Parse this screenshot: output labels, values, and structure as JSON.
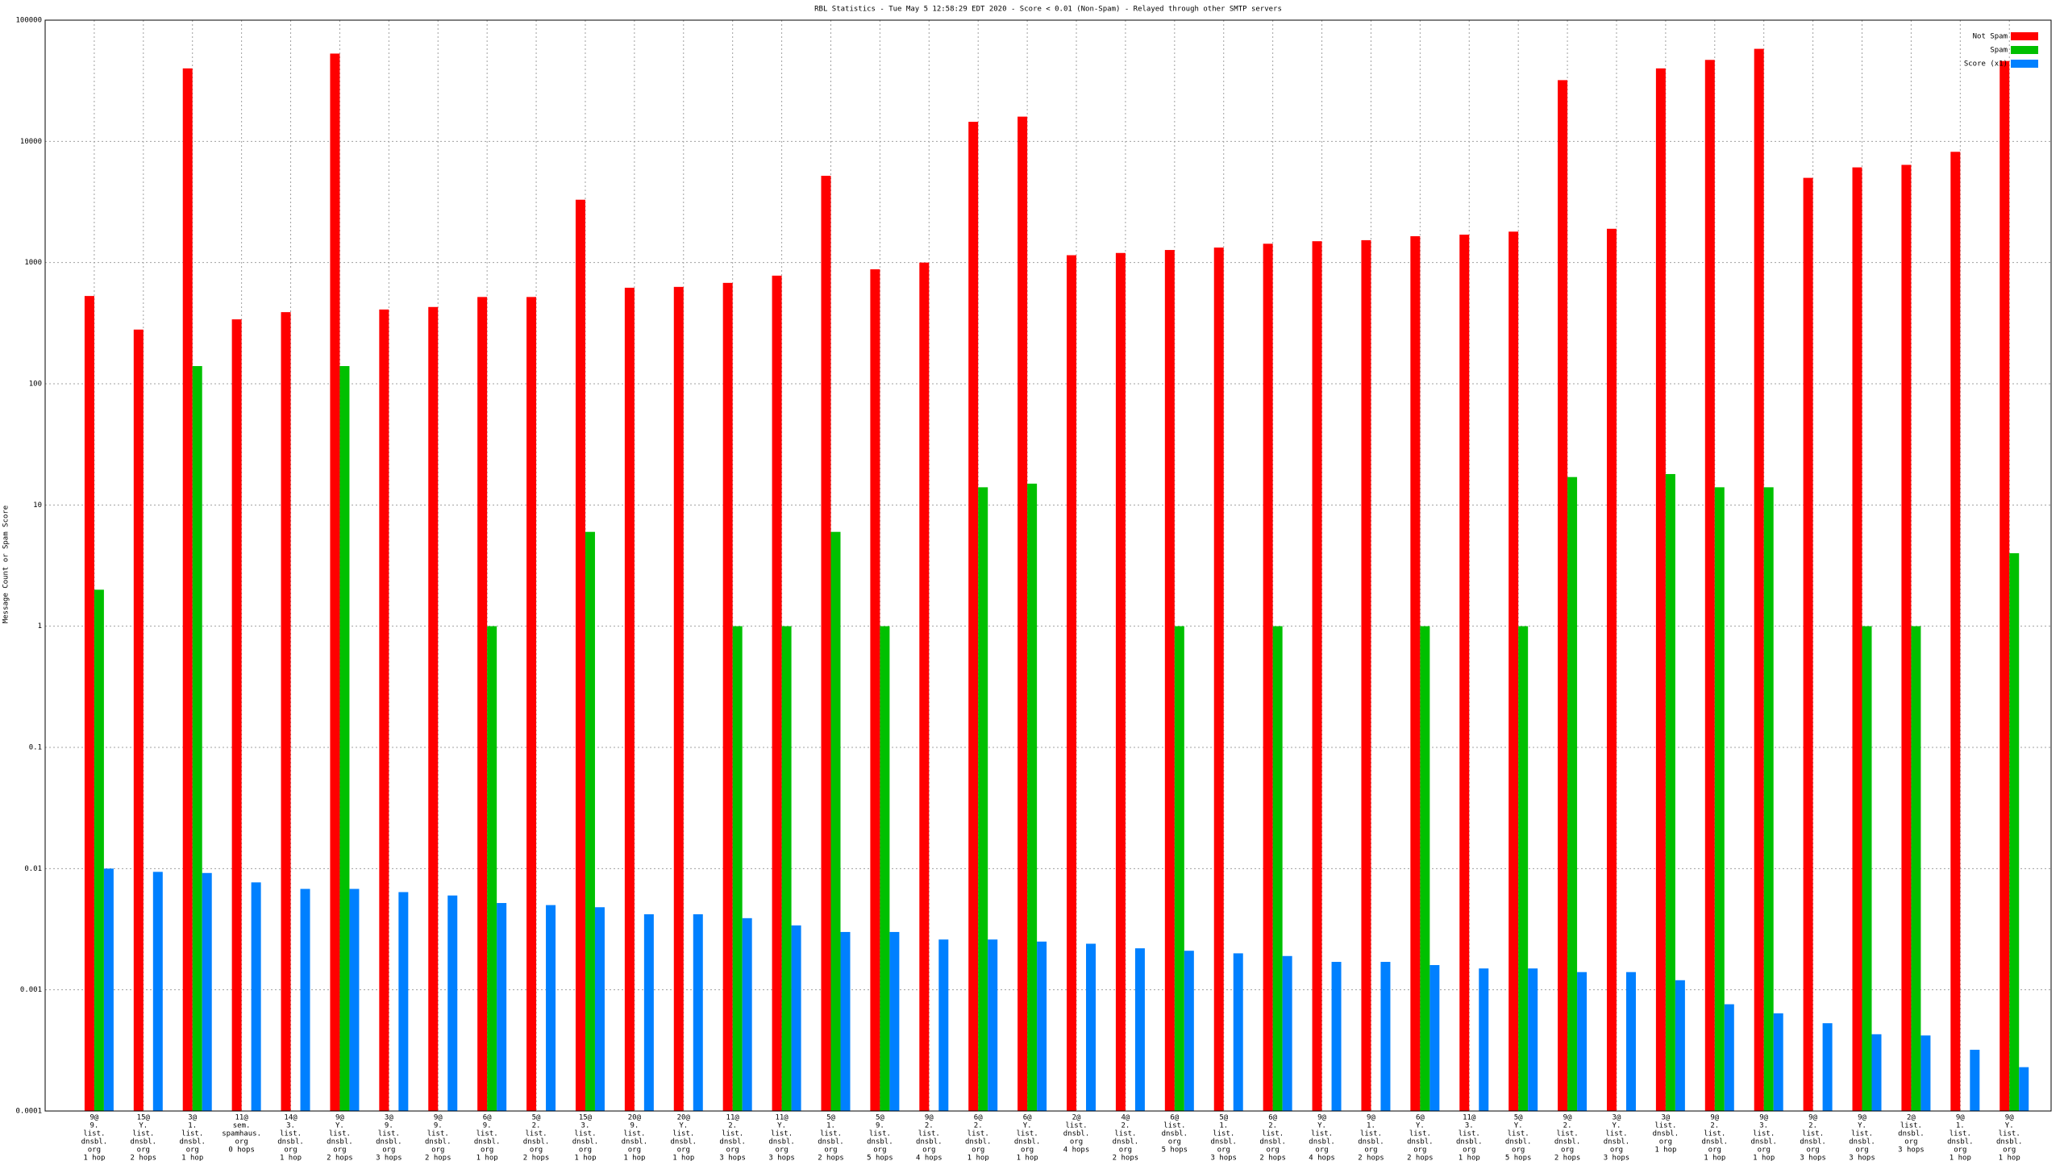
{
  "chart_data": {
    "type": "bar",
    "title": "RBL Statistics - Tue May  5 12:58:29 EDT 2020 - Score < 0.01 (Non-Spam) - Relayed through other SMTP servers",
    "y_label": "Message Count or Spam Score",
    "log_scale": true,
    "grid": true,
    "legend": "top-right",
    "ylim": [
      0.0001,
      100000
    ],
    "yticks": [
      0.0001,
      0.001,
      0.01,
      0.1,
      1,
      10,
      100,
      1000,
      10000,
      100000
    ],
    "categories": [
      [
        "9@",
        "9.",
        "list.",
        "dnsbl.",
        "org",
        "1 hop"
      ],
      [
        "15@",
        "Y.",
        "list.",
        "dnsbl.",
        "org",
        "2 hops"
      ],
      [
        "3@",
        "1.",
        "list.",
        "dnsbl.",
        "org",
        "1 hop"
      ],
      [
        "11@",
        "sem.",
        "spamhaus.",
        "org",
        "0 hops"
      ],
      [
        "14@",
        "3.",
        "list.",
        "dnsbl.",
        "org",
        "1 hop"
      ],
      [
        "9@",
        "Y.",
        "list.",
        "dnsbl.",
        "org",
        "2 hops"
      ],
      [
        "3@",
        "9.",
        "list.",
        "dnsbl.",
        "org",
        "3 hops"
      ],
      [
        "9@",
        "9.",
        "list.",
        "dnsbl.",
        "org",
        "2 hops"
      ],
      [
        "6@",
        "9.",
        "list.",
        "dnsbl.",
        "org",
        "1 hop"
      ],
      [
        "5@",
        "2.",
        "list.",
        "dnsbl.",
        "org",
        "2 hops"
      ],
      [
        "15@",
        "3.",
        "list.",
        "dnsbl.",
        "org",
        "1 hop"
      ],
      [
        "20@",
        "9.",
        "list.",
        "dnsbl.",
        "org",
        "1 hop"
      ],
      [
        "20@",
        "Y.",
        "list.",
        "dnsbl.",
        "org",
        "1 hop"
      ],
      [
        "11@",
        "2.",
        "list.",
        "dnsbl.",
        "org",
        "3 hops"
      ],
      [
        "11@",
        "Y.",
        "list.",
        "dnsbl.",
        "org",
        "3 hops"
      ],
      [
        "5@",
        "1.",
        "list.",
        "dnsbl.",
        "org",
        "2 hops"
      ],
      [
        "5@",
        "9.",
        "list.",
        "dnsbl.",
        "org",
        "5 hops"
      ],
      [
        "9@",
        "2.",
        "list.",
        "dnsbl.",
        "org",
        "4 hops"
      ],
      [
        "6@",
        "2.",
        "list.",
        "dnsbl.",
        "org",
        "1 hop"
      ],
      [
        "6@",
        "Y.",
        "list.",
        "dnsbl.",
        "org",
        "1 hop"
      ],
      [
        "2@",
        "list.",
        "dnsbl.",
        "org",
        "4 hops"
      ],
      [
        "4@",
        "2.",
        "list.",
        "dnsbl.",
        "org",
        "2 hops"
      ],
      [
        "6@",
        "list.",
        "dnsbl.",
        "org",
        "5 hops"
      ],
      [
        "5@",
        "1.",
        "list.",
        "dnsbl.",
        "org",
        "3 hops"
      ],
      [
        "6@",
        "2.",
        "list.",
        "dnsbl.",
        "org",
        "2 hops"
      ],
      [
        "9@",
        "Y.",
        "list.",
        "dnsbl.",
        "org",
        "4 hops"
      ],
      [
        "9@",
        "1.",
        "list.",
        "dnsbl.",
        "org",
        "2 hops"
      ],
      [
        "6@",
        "Y.",
        "list.",
        "dnsbl.",
        "org",
        "2 hops"
      ],
      [
        "11@",
        "3.",
        "list.",
        "dnsbl.",
        "org",
        "1 hop"
      ],
      [
        "5@",
        "Y.",
        "list.",
        "dnsbl.",
        "org",
        "5 hops"
      ],
      [
        "9@",
        "2.",
        "list.",
        "dnsbl.",
        "org",
        "2 hops"
      ],
      [
        "3@",
        "Y.",
        "list.",
        "dnsbl.",
        "org",
        "3 hops"
      ],
      [
        "3@",
        "list.",
        "dnsbl.",
        "org",
        "1 hop"
      ],
      [
        "9@",
        "2.",
        "list.",
        "dnsbl.",
        "org",
        "1 hop"
      ],
      [
        "9@",
        "3.",
        "list.",
        "dnsbl.",
        "org",
        "1 hop"
      ],
      [
        "9@",
        "2.",
        "list.",
        "dnsbl.",
        "org",
        "3 hops"
      ],
      [
        "9@",
        "Y.",
        "list.",
        "dnsbl.",
        "org",
        "3 hops"
      ],
      [
        "2@",
        "list.",
        "dnsbl.",
        "org",
        "3 hops"
      ],
      [
        "9@",
        "1.",
        "list.",
        "dnsbl.",
        "org",
        "1 hop"
      ],
      [
        "9@",
        "Y.",
        "list.",
        "dnsbl.",
        "org",
        "1 hop"
      ]
    ],
    "series": [
      {
        "name": "Not Spam",
        "color": "#ff0000",
        "values": [
          530,
          280,
          40000,
          340,
          390,
          53000,
          410,
          430,
          520,
          520,
          3300,
          620,
          630,
          680,
          780,
          5200,
          880,
          1000,
          14500,
          16000,
          1150,
          1200,
          1270,
          1330,
          1430,
          1500,
          1530,
          1650,
          1700,
          1800,
          32000,
          1900,
          40000,
          47000,
          58000,
          5000,
          6100,
          6400,
          8200,
          46000
        ]
      },
      {
        "name": "Spam",
        "color": "#00c000",
        "values": [
          2,
          null,
          140,
          null,
          null,
          140,
          null,
          null,
          1,
          null,
          6,
          null,
          null,
          1,
          1,
          6,
          1,
          null,
          14,
          15,
          null,
          null,
          1,
          null,
          1,
          null,
          null,
          1,
          null,
          1,
          17,
          null,
          18,
          14,
          14,
          null,
          1,
          1,
          null,
          4
        ]
      },
      {
        "name": "Score (x1)",
        "color": "#0080ff",
        "values": [
          0.01,
          0.0094,
          0.0092,
          0.0077,
          0.0068,
          0.0068,
          0.0064,
          0.006,
          0.0052,
          0.005,
          0.0048,
          0.0042,
          0.0042,
          0.0039,
          0.0034,
          0.003,
          0.003,
          0.0026,
          0.0026,
          0.0025,
          0.0024,
          0.0022,
          0.0021,
          0.002,
          0.0019,
          0.0017,
          0.0017,
          0.0016,
          0.0015,
          0.0015,
          0.0014,
          0.0014,
          0.0012,
          0.00076,
          0.00064,
          0.00053,
          0.00043,
          0.00042,
          0.00032,
          0.00023
        ]
      }
    ]
  }
}
